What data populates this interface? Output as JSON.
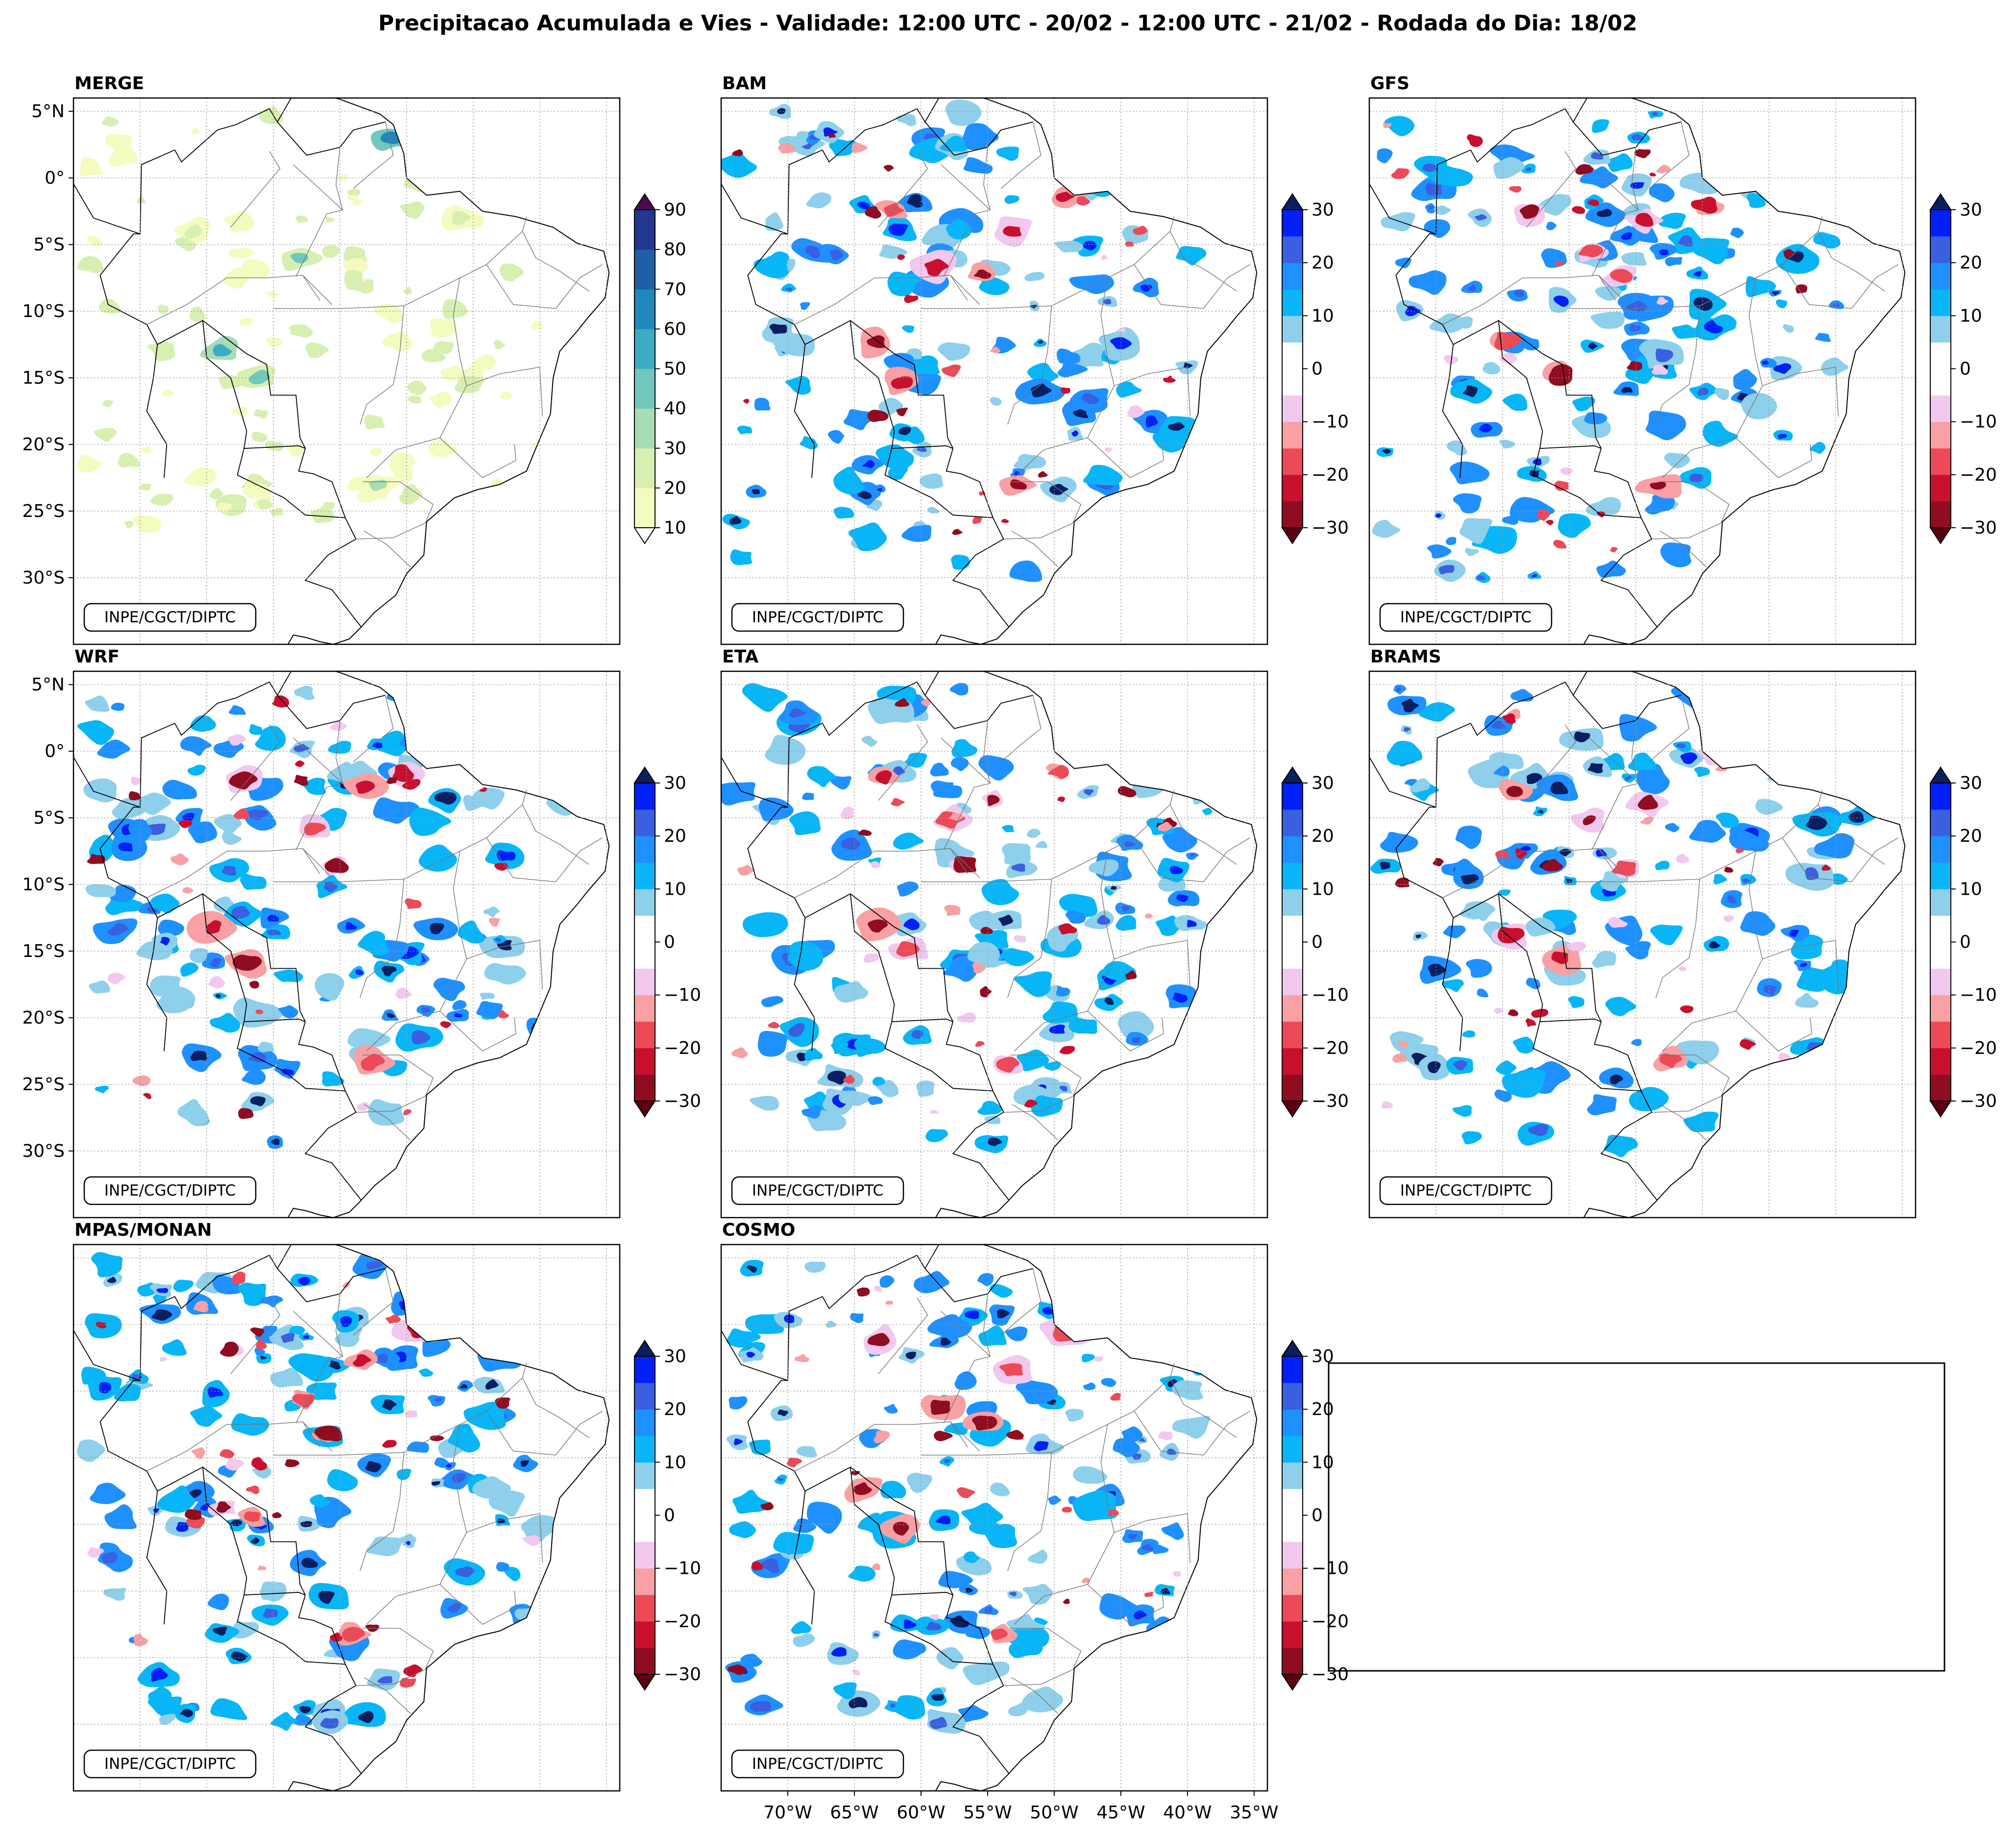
{
  "title": "Precipitacao Acumulada e Vies - Validade: 12:00 UTC - 20/02 - 12:00 UTC - 21/02 - Rodada do Dia: 18/02",
  "credit": "INPE/CGCT/DIPTC",
  "panels": [
    "MERGE",
    "BAM",
    "GFS",
    "WRF",
    "ETA",
    "BRAMS",
    "MPAS/MONAN",
    "COSMO"
  ],
  "lat_ticks": [
    "5°N",
    "0°",
    "5°S",
    "10°S",
    "15°S",
    "20°S",
    "25°S",
    "30°S"
  ],
  "lon_ticks": [
    "70°W",
    "65°W",
    "60°W",
    "55°W",
    "50°W",
    "45°W",
    "40°W",
    "35°W"
  ],
  "colors": {
    "precip": [
      "#f4fbbe",
      "#d8efb2",
      "#a8dcb5",
      "#72c7bc",
      "#3eabc5",
      "#1f87bb",
      "#205fa6",
      "#22378f",
      "#0d1e58"
    ],
    "precip_over": "#4d0a4d",
    "precip_under": "#ffffff",
    "bias": [
      "#900c20",
      "#c8102e",
      "#ec4a57",
      "#f8a0a3",
      "#f2c8ee",
      "#ffffff",
      "#ffffff",
      "#8ecfeb",
      "#08b6f7",
      "#1e90ff",
      "#3a5fe0",
      "#0020f5"
    ],
    "bias_under": "#5c0011",
    "bias_over": "#0a1e60"
  },
  "chart_data": [
    {
      "type": "heatmap",
      "title": "MERGE",
      "quantity": "precipitation accumulated (mm)",
      "colorbar_ticks": [
        10,
        20,
        30,
        40,
        50,
        60,
        70,
        80,
        90
      ],
      "extend": "both",
      "lon_range": [
        -75,
        -34
      ],
      "lat_range": [
        -35,
        6
      ],
      "cells": [
        {
          "lon": -61,
          "lat": -15,
          "value": 45
        },
        {
          "lon": -64,
          "lat": -13,
          "value": 50
        },
        {
          "lon": -58,
          "lat": -6,
          "value": 40
        },
        {
          "lon": -46,
          "lat": -3,
          "value": 25
        },
        {
          "lon": -51,
          "lat": 3,
          "value": 60
        },
        {
          "lon": -52,
          "lat": -23,
          "value": 30
        },
        {
          "lon": -66,
          "lat": -4,
          "value": 20
        }
      ]
    },
    {
      "type": "heatmap",
      "title": "BAM",
      "quantity": "bias (mm)",
      "colorbar_ticks": [
        -30,
        -20,
        -10,
        0,
        10,
        20,
        30
      ],
      "extend": "both",
      "lon_range": [
        -75,
        -34
      ],
      "lat_range": [
        -35,
        6
      ]
    },
    {
      "type": "heatmap",
      "title": "GFS",
      "quantity": "bias (mm)",
      "colorbar_ticks": [
        -30,
        -20,
        -10,
        0,
        10,
        20,
        30
      ],
      "extend": "both",
      "lon_range": [
        -75,
        -34
      ],
      "lat_range": [
        -35,
        6
      ]
    },
    {
      "type": "heatmap",
      "title": "WRF",
      "quantity": "bias (mm)",
      "colorbar_ticks": [
        -30,
        -20,
        -10,
        0,
        10,
        20,
        30
      ],
      "extend": "both",
      "lon_range": [
        -75,
        -34
      ],
      "lat_range": [
        -35,
        6
      ]
    },
    {
      "type": "heatmap",
      "title": "ETA",
      "quantity": "bias (mm)",
      "colorbar_ticks": [
        -30,
        -20,
        -10,
        0,
        10,
        20,
        30
      ],
      "extend": "both",
      "lon_range": [
        -75,
        -34
      ],
      "lat_range": [
        -35,
        6
      ]
    },
    {
      "type": "heatmap",
      "title": "BRAMS",
      "quantity": "bias (mm)",
      "colorbar_ticks": [
        -30,
        -20,
        -10,
        0,
        10,
        20,
        30
      ],
      "extend": "both",
      "lon_range": [
        -75,
        -34
      ],
      "lat_range": [
        -35,
        6
      ]
    },
    {
      "type": "heatmap",
      "title": "MPAS/MONAN",
      "quantity": "bias (mm)",
      "colorbar_ticks": [
        -30,
        -20,
        -10,
        0,
        10,
        20,
        30
      ],
      "extend": "both",
      "lon_range": [
        -75,
        -34
      ],
      "lat_range": [
        -35,
        6
      ]
    },
    {
      "type": "heatmap",
      "title": "COSMO",
      "quantity": "bias (mm)",
      "colorbar_ticks": [
        -30,
        -20,
        -10,
        0,
        10,
        20,
        30
      ],
      "extend": "both",
      "lon_range": [
        -75,
        -34
      ],
      "lat_range": [
        -35,
        6
      ]
    }
  ]
}
